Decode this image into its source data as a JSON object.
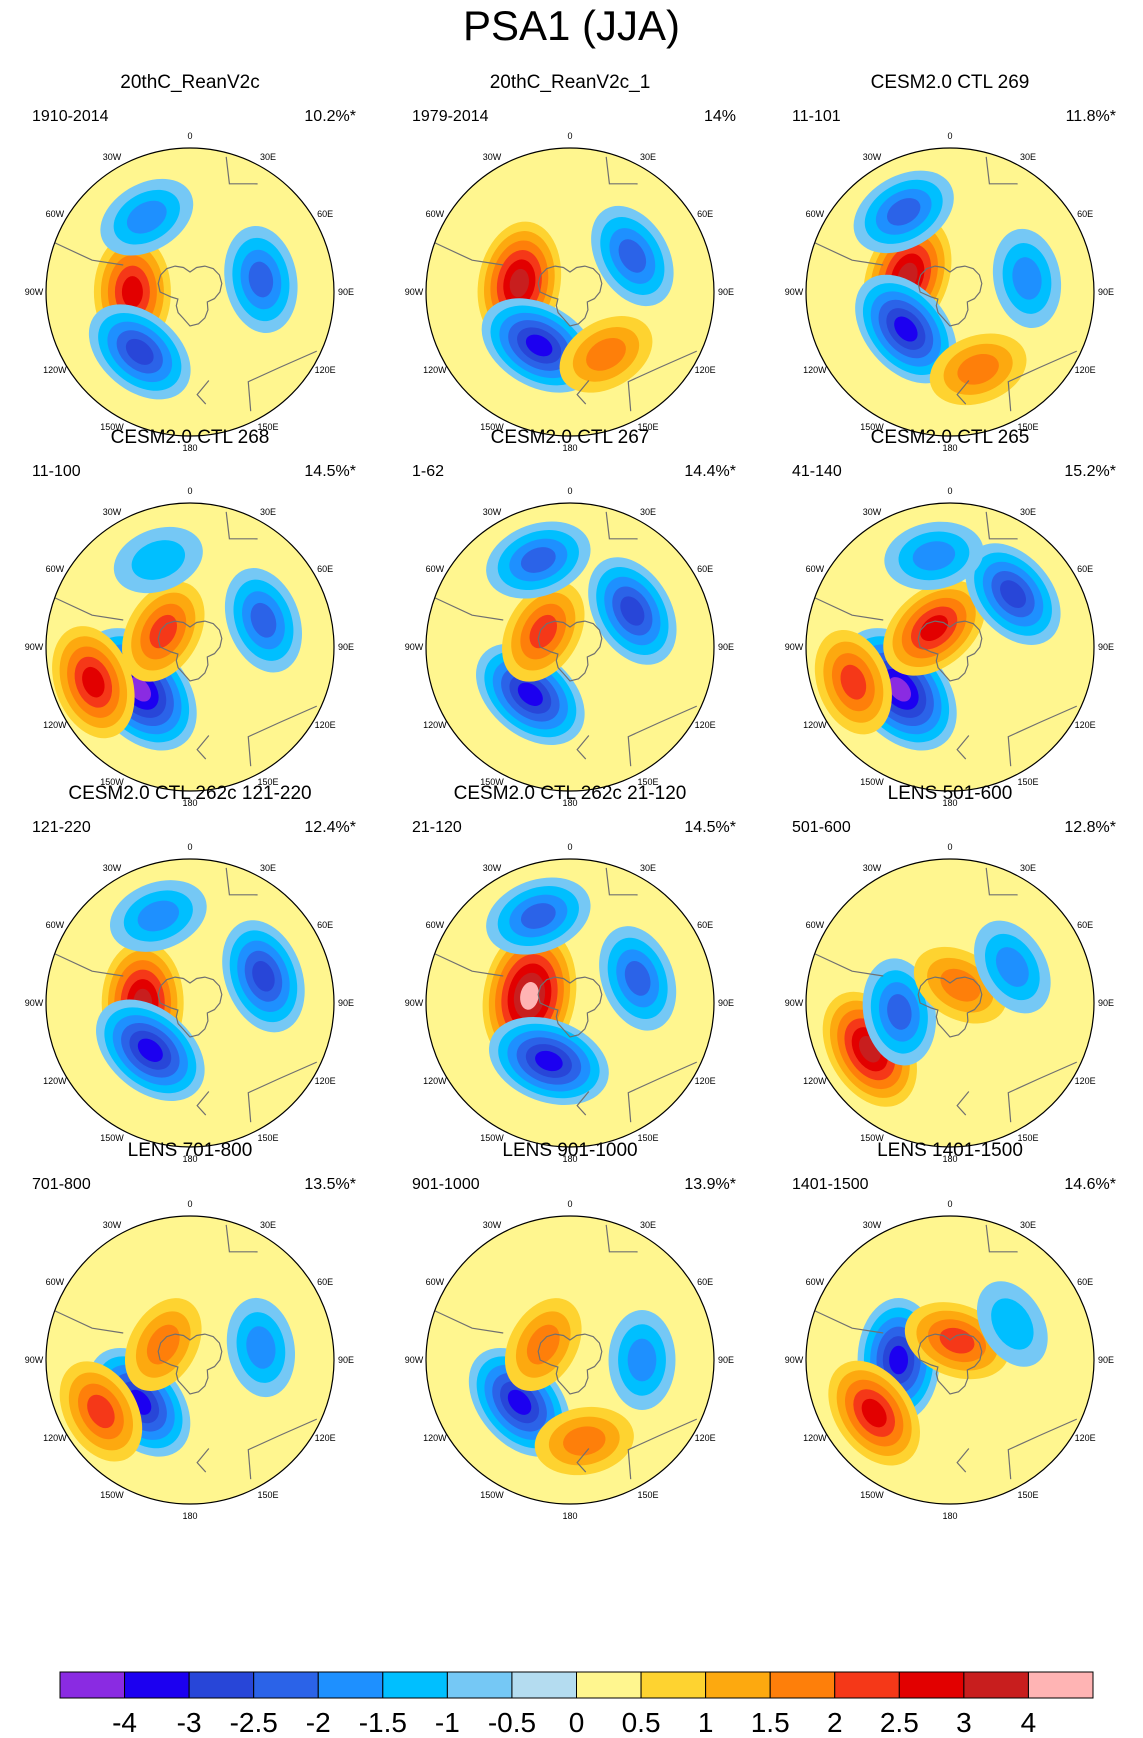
{
  "title": "PSA1 (JJA)",
  "colors": {
    "c_lt_m4": "#8a2be2",
    "c_m4_m3": "#1c00f0",
    "c_m3_m25": "#2846d8",
    "c_m25_m2": "#2b63e8",
    "c_m2_m15": "#1e90ff",
    "c_m15_m1": "#00bfff",
    "c_m1_m05": "#75c8f5",
    "c_m05_0": "#b4dcf0",
    "c_0_05": "#fff68f",
    "c_05_1": "#fed330",
    "c_1_15": "#fda90f",
    "c_15_2": "#fe7f0a",
    "c_2_25": "#f53818",
    "c_25_3": "#e20000",
    "c_3_4": "#c81e1e",
    "c_gt_4": "#ffb4b4",
    "coast": "#707070"
  },
  "longitude_labels": [
    "0",
    "30E",
    "60E",
    "90E",
    "120E",
    "150E",
    "180",
    "150W",
    "120W",
    "90W",
    "60W",
    "30W"
  ],
  "panels": [
    {
      "title": "20thC_ReanV2c",
      "period": "1910-2014",
      "percent": "10.2%*"
    },
    {
      "title": "20thC_ReanV2c_1",
      "period": "1979-2014",
      "percent": "14%"
    },
    {
      "title": "CESM2.0 CTL 269",
      "period": "11-101",
      "percent": "11.8%*"
    },
    {
      "title": "CESM2.0 CTL 268",
      "period": "11-100",
      "percent": "14.5%*"
    },
    {
      "title": "CESM2.0 CTL 267",
      "period": "1-62",
      "percent": "14.4%*"
    },
    {
      "title": "CESM2.0 CTL 265",
      "period": "41-140",
      "percent": "15.2%*"
    },
    {
      "title": "CESM2.0 CTL 262c 121-220",
      "period": "121-220",
      "percent": "12.4%*"
    },
    {
      "title": "CESM2.0 CTL 262c 21-120",
      "period": "21-120",
      "percent": "14.5%*"
    },
    {
      "title": "LENS 501-600",
      "period": "501-600",
      "percent": "12.8%*"
    },
    {
      "title": "LENS 701-800",
      "period": "701-800",
      "percent": "13.5%*"
    },
    {
      "title": "LENS 901-1000",
      "period": "901-1000",
      "percent": "13.9%*"
    },
    {
      "title": "LENS 1401-1500",
      "period": "1401-1500",
      "percent": "14.6%*"
    }
  ],
  "colorbar": {
    "labels": [
      "-4",
      "-3",
      "-2.5",
      "-2",
      "-1.5",
      "-1",
      "-0.5",
      "0",
      "0.5",
      "1",
      "1.5",
      "2",
      "2.5",
      "3",
      "4"
    ]
  },
  "chart_data": {
    "type": "heatmap",
    "title": "PSA1 (JJA)",
    "description_fields": "polar stereographic maps, Southern Hemisphere",
    "contour_levels": [
      -4,
      -3,
      -2.5,
      -2,
      -1.5,
      -1,
      -0.5,
      0,
      0.5,
      1,
      1.5,
      2,
      2.5,
      3,
      4
    ],
    "panels": [
      {
        "name": "20thC_ReanV2c",
        "period": "1910-2014",
        "variance_explained": "10.2%*",
        "centers": [
          {
            "lon": -90,
            "lat": -62,
            "value": 2.5
          },
          {
            "lon": -140,
            "lat": -52,
            "value": -2.5
          },
          {
            "lon": 80,
            "lat": -55,
            "value": -2
          },
          {
            "lon": -30,
            "lat": -48,
            "value": -1.5
          }
        ]
      },
      {
        "name": "20thC_ReanV2c_1",
        "period": "1979-2014",
        "variance_explained": "14%",
        "centers": [
          {
            "lon": -80,
            "lat": -65,
            "value": 3
          },
          {
            "lon": -150,
            "lat": -60,
            "value": -3
          },
          {
            "lon": 60,
            "lat": -55,
            "value": -2
          },
          {
            "lon": 150,
            "lat": -55,
            "value": 1.5
          }
        ]
      },
      {
        "name": "CESM2.0 CTL 269",
        "period": "11-101",
        "variance_explained": "11.8%*",
        "centers": [
          {
            "lon": -70,
            "lat": -68,
            "value": 3
          },
          {
            "lon": -130,
            "lat": -62,
            "value": -3
          },
          {
            "lon": -30,
            "lat": -45,
            "value": -2
          },
          {
            "lon": 80,
            "lat": -52,
            "value": -1.5
          },
          {
            "lon": 160,
            "lat": -50,
            "value": 1.5
          }
        ]
      },
      {
        "name": "CESM2.0 CTL 268",
        "period": "11-100",
        "variance_explained": "14.5%*",
        "centers": [
          {
            "lon": -130,
            "lat": -58,
            "value": -4
          },
          {
            "lon": -110,
            "lat": -40,
            "value": 2.5
          },
          {
            "lon": -60,
            "lat": -75,
            "value": 2
          },
          {
            "lon": 70,
            "lat": -52,
            "value": -2
          },
          {
            "lon": -20,
            "lat": -45,
            "value": -1
          }
        ]
      },
      {
        "name": "CESM2.0 CTL 267",
        "period": "1-62",
        "variance_explained": "14.4%*",
        "centers": [
          {
            "lon": -140,
            "lat": -60,
            "value": -3
          },
          {
            "lon": -60,
            "lat": -75,
            "value": 2
          },
          {
            "lon": 60,
            "lat": -55,
            "value": -2.5
          },
          {
            "lon": -20,
            "lat": -45,
            "value": -2
          }
        ]
      },
      {
        "name": "CESM2.0 CTL 265",
        "period": "41-140",
        "variance_explained": "15.2%*",
        "centers": [
          {
            "lon": -130,
            "lat": -58,
            "value": -4
          },
          {
            "lon": -40,
            "lat": -78,
            "value": 2.5
          },
          {
            "lon": -110,
            "lat": -40,
            "value": 2
          },
          {
            "lon": 50,
            "lat": -50,
            "value": -2.5
          },
          {
            "lon": -10,
            "lat": -45,
            "value": -1.5
          }
        ]
      },
      {
        "name": "CESM2.0 CTL 262c 121-220",
        "period": "121-220",
        "variance_explained": "12.4%*",
        "centers": [
          {
            "lon": -90,
            "lat": -67,
            "value": 3
          },
          {
            "lon": -140,
            "lat": -60,
            "value": -3
          },
          {
            "lon": 70,
            "lat": -52,
            "value": -2.5
          },
          {
            "lon": -20,
            "lat": -45,
            "value": -1.5
          }
        ]
      },
      {
        "name": "CESM2.0 CTL 262c 21-120",
        "period": "21-120",
        "variance_explained": "14.5%*",
        "centers": [
          {
            "lon": -80,
            "lat": -70,
            "value": 4
          },
          {
            "lon": -160,
            "lat": -60,
            "value": -3
          },
          {
            "lon": 70,
            "lat": -55,
            "value": -2
          },
          {
            "lon": -20,
            "lat": -45,
            "value": -2
          }
        ]
      },
      {
        "name": "LENS 501-600",
        "period": "501-600",
        "variance_explained": "12.8%*",
        "centers": [
          {
            "lon": -120,
            "lat": -45,
            "value": 3
          },
          {
            "lon": -100,
            "lat": -65,
            "value": -2
          },
          {
            "lon": 30,
            "lat": -80,
            "value": 1.5
          },
          {
            "lon": 60,
            "lat": -55,
            "value": -1.5
          }
        ]
      },
      {
        "name": "LENS 701-800",
        "period": "701-800",
        "variance_explained": "13.5%*",
        "centers": [
          {
            "lon": -130,
            "lat": -58,
            "value": -3
          },
          {
            "lon": -120,
            "lat": -40,
            "value": 2
          },
          {
            "lon": -60,
            "lat": -75,
            "value": 1.5
          },
          {
            "lon": 80,
            "lat": -55,
            "value": -1.5
          }
        ]
      },
      {
        "name": "LENS 901-1000",
        "period": "901-1000",
        "variance_explained": "13.9%*",
        "centers": [
          {
            "lon": -130,
            "lat": -58,
            "value": -3
          },
          {
            "lon": -60,
            "lat": -75,
            "value": 1.5
          },
          {
            "lon": 90,
            "lat": -55,
            "value": -1.5
          },
          {
            "lon": 170,
            "lat": -50,
            "value": 1.5
          }
        ]
      },
      {
        "name": "LENS 1401-1500",
        "period": "1401-1500",
        "variance_explained": "14.6%*",
        "centers": [
          {
            "lon": -90,
            "lat": -65,
            "value": -3
          },
          {
            "lon": -125,
            "lat": -45,
            "value": 2.5
          },
          {
            "lon": 20,
            "lat": -80,
            "value": 2
          },
          {
            "lon": 60,
            "lat": -55,
            "value": -1
          }
        ]
      }
    ]
  }
}
